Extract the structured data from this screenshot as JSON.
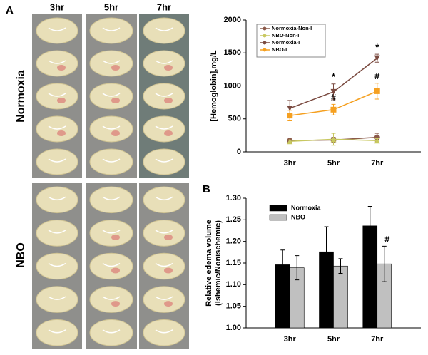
{
  "figure": {
    "panel_labels": [
      "A",
      "B"
    ],
    "photo_columns": [
      "3hr",
      "5hr",
      "7hr"
    ],
    "photo_rows": [
      "Normoxia",
      "NBO"
    ]
  },
  "chart_data": [
    {
      "type": "line",
      "ylabel": "[Hemoglobin],mg/L",
      "categories": [
        "3hr",
        "5hr",
        "7hr"
      ],
      "ylim": [
        0,
        2000
      ],
      "yticks": [
        0,
        500,
        1000,
        1500,
        2000
      ],
      "legend": "top-left",
      "series": [
        {
          "name": "Normoxia-Non-I",
          "color": "#8b5a4a",
          "marker": "circle",
          "values": [
            170,
            180,
            220
          ],
          "errors": [
            20,
            40,
            60
          ]
        },
        {
          "name": "NBO-Non-I",
          "color": "#c8c860",
          "marker": "triangle",
          "values": [
            160,
            190,
            170
          ],
          "errors": [
            20,
            90,
            30
          ]
        },
        {
          "name": "Normoxia-I",
          "color": "#7a4a40",
          "marker": "triangle-down",
          "values": [
            660,
            910,
            1420
          ],
          "errors": [
            120,
            120,
            60
          ],
          "significance": [
            null,
            "*",
            "*"
          ]
        },
        {
          "name": "NBO-I",
          "color": "#f5a020",
          "marker": "square",
          "values": [
            550,
            640,
            920
          ],
          "errors": [
            80,
            80,
            120
          ],
          "significance": [
            null,
            "#",
            "#"
          ]
        }
      ]
    },
    {
      "type": "bar",
      "ylabel_lines": [
        "Relative edema volume",
        "(Ishemic/Nonischemic)"
      ],
      "categories": [
        "3hr",
        "5hr",
        "7hr"
      ],
      "ylim": [
        1.0,
        1.3
      ],
      "yticks": [
        {
          "value": 1.0,
          "label": "1.00"
        },
        1.05,
        {
          "value": 1.1,
          "label": "1.10"
        },
        1.15,
        {
          "value": 1.2,
          "label": "1.20"
        },
        1.25,
        {
          "value": 1.3,
          "label": "1.30"
        }
      ],
      "legend": "top-left",
      "series": [
        {
          "name": "Normoxia",
          "color": "#000000",
          "values": [
            1.146,
            1.176,
            1.236
          ],
          "errors": [
            0.034,
            0.058,
            0.045
          ]
        },
        {
          "name": "NBO",
          "color": "#c0c0c0",
          "values": [
            1.139,
            1.143,
            1.148
          ],
          "errors": [
            0.028,
            0.017,
            0.041
          ],
          "significance": [
            null,
            null,
            "#"
          ]
        }
      ]
    }
  ]
}
